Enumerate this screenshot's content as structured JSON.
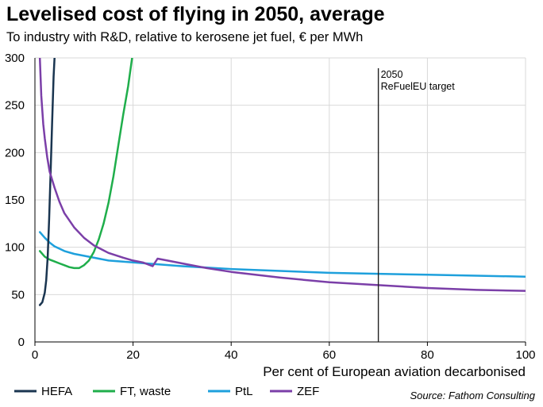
{
  "title": "Levelised cost of flying in 2050, average",
  "subtitle": "To industry with R&D, relative to kerosene jet fuel, € per MWh",
  "source": "Source: Fathom Consulting",
  "chart_data": {
    "type": "line",
    "xlabel": "Per cent of European aviation decarbonised",
    "ylabel": "",
    "xlim": [
      0,
      100
    ],
    "ylim": [
      0,
      300
    ],
    "xticks": [
      "0",
      "20",
      "40",
      "60",
      "80",
      "100"
    ],
    "yticks": [
      "0",
      "50",
      "100",
      "150",
      "200",
      "250",
      "300"
    ],
    "grid": true,
    "legend_position": "bottom",
    "series": [
      {
        "name": "HEFA",
        "color": "#1a3550",
        "points": [
          [
            1,
            39
          ],
          [
            1.5,
            42
          ],
          [
            2,
            52
          ],
          [
            2.3,
            65
          ],
          [
            2.6,
            90
          ],
          [
            2.9,
            130
          ],
          [
            3.2,
            180
          ],
          [
            3.5,
            230
          ],
          [
            3.8,
            280
          ],
          [
            4.0,
            300
          ]
        ]
      },
      {
        "name": "FT, waste",
        "color": "#1fae4b",
        "points": [
          [
            1,
            96
          ],
          [
            2,
            90
          ],
          [
            3,
            87
          ],
          [
            4,
            85
          ],
          [
            5,
            83
          ],
          [
            6,
            81
          ],
          [
            7,
            79
          ],
          [
            8,
            78
          ],
          [
            9,
            78
          ],
          [
            10,
            81
          ],
          [
            11,
            86
          ],
          [
            12,
            95
          ],
          [
            13,
            108
          ],
          [
            14,
            125
          ],
          [
            15,
            147
          ],
          [
            16,
            175
          ],
          [
            17,
            208
          ],
          [
            18,
            240
          ],
          [
            19,
            270
          ],
          [
            19.8,
            300
          ]
        ]
      },
      {
        "name": "PtL",
        "color": "#1ea0dc",
        "points": [
          [
            1,
            116
          ],
          [
            2,
            110
          ],
          [
            3,
            105
          ],
          [
            4,
            101
          ],
          [
            6,
            96
          ],
          [
            8,
            93
          ],
          [
            10,
            91
          ],
          [
            15,
            86
          ],
          [
            20,
            84
          ],
          [
            25,
            82
          ],
          [
            30,
            80
          ],
          [
            40,
            77
          ],
          [
            50,
            75
          ],
          [
            60,
            73
          ],
          [
            70,
            72
          ],
          [
            80,
            71
          ],
          [
            90,
            70
          ],
          [
            100,
            69
          ]
        ]
      },
      {
        "name": "ZEF",
        "color": "#7b3fa8",
        "points": [
          [
            1,
            300
          ],
          [
            1.3,
            260
          ],
          [
            1.7,
            230
          ],
          [
            2,
            215
          ],
          [
            2.5,
            195
          ],
          [
            3,
            180
          ],
          [
            4,
            163
          ],
          [
            5,
            148
          ],
          [
            6,
            136
          ],
          [
            8,
            121
          ],
          [
            10,
            110
          ],
          [
            12,
            102
          ],
          [
            15,
            94
          ],
          [
            18,
            89
          ],
          [
            20,
            86
          ],
          [
            22,
            84
          ],
          [
            24,
            80
          ],
          [
            25,
            88
          ],
          [
            27,
            86
          ],
          [
            30,
            83
          ],
          [
            35,
            78
          ],
          [
            40,
            74
          ],
          [
            50,
            68
          ],
          [
            60,
            63
          ],
          [
            70,
            60
          ],
          [
            80,
            57
          ],
          [
            90,
            55
          ],
          [
            100,
            54
          ]
        ]
      }
    ],
    "annotations": [
      {
        "x": 70,
        "line1": "2050",
        "line2": "ReFuelEU target"
      }
    ]
  }
}
